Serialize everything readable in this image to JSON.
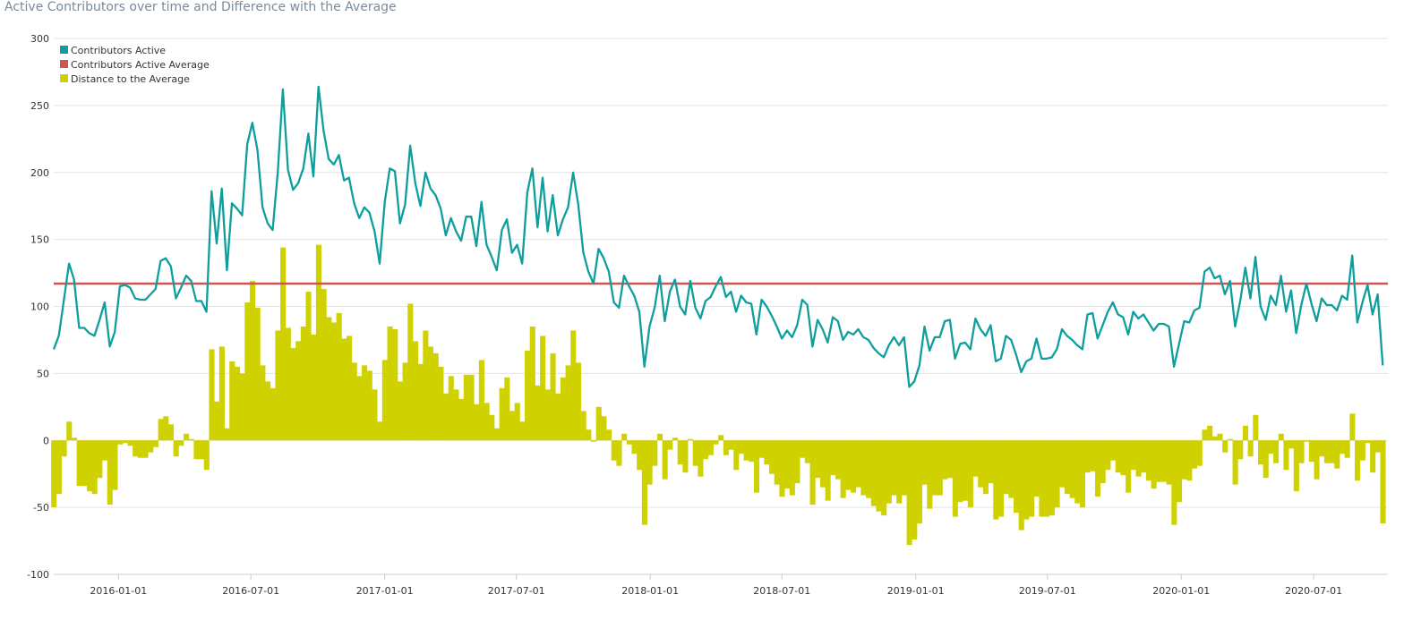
{
  "chart_data": {
    "type": "bar",
    "title": "Active Contributors over time and Difference with the Average",
    "xlabel": "",
    "ylabel": "",
    "ylim": [
      -100,
      300
    ],
    "yticks": [
      300,
      250,
      200,
      150,
      100,
      50,
      0,
      -50,
      -100
    ],
    "x_range": [
      "2015-10-04",
      "2020-10-11"
    ],
    "x_tick_labels": [
      "2016-01-01",
      "2016-07-01",
      "2017-01-01",
      "2017-07-01",
      "2018-01-01",
      "2018-07-01",
      "2019-01-01",
      "2019-07-01",
      "2020-01-01",
      "2020-07-01"
    ],
    "grid": "horizontal",
    "legend_position": "top-left",
    "colors": {
      "active": "#0f9e9e",
      "average": "#cf5555",
      "distance": "#cfd200"
    },
    "series": [
      {
        "name": "Contributors Active",
        "type": "line",
        "start_date": "2015-10-04",
        "interval_days": 7,
        "values": [
          68,
          78,
          105,
          132,
          120,
          84,
          84,
          80,
          78,
          90,
          103,
          70,
          81,
          115,
          116,
          114,
          106,
          105,
          105,
          109,
          113,
          134,
          136,
          130,
          106,
          114,
          123,
          119,
          104,
          104,
          96,
          186,
          147,
          188,
          127,
          177,
          173,
          168,
          221,
          237,
          217,
          174,
          162,
          157,
          200,
          262,
          202,
          187,
          192,
          203,
          229,
          197,
          264,
          231,
          210,
          206,
          213,
          194,
          196,
          177,
          166,
          174,
          170,
          156,
          132,
          178,
          203,
          201,
          162,
          176,
          220,
          192,
          175,
          200,
          188,
          183,
          173,
          153,
          166,
          156,
          149,
          167,
          167,
          145,
          178,
          146,
          137,
          127,
          157,
          165,
          140,
          146,
          132,
          185,
          203,
          159,
          196,
          156,
          183,
          153,
          165,
          174,
          200,
          176,
          140,
          126,
          117,
          143,
          136,
          126,
          103,
          99,
          123,
          115,
          108,
          96,
          55,
          85,
          99,
          123,
          89,
          111,
          120,
          100,
          94,
          119,
          99,
          91,
          104,
          107,
          115,
          122,
          107,
          111,
          96,
          108,
          103,
          102,
          79,
          105,
          100,
          93,
          85,
          76,
          82,
          77,
          86,
          105,
          101,
          70,
          90,
          83,
          73,
          92,
          89,
          75,
          81,
          79,
          83,
          77,
          75,
          69,
          65,
          62,
          71,
          77,
          71,
          77,
          40,
          44,
          56,
          85,
          67,
          77,
          77,
          89,
          90,
          61,
          72,
          73,
          68,
          91,
          83,
          78,
          86,
          59,
          61,
          78,
          75,
          64,
          51,
          59,
          61,
          76,
          61,
          61,
          62,
          68,
          83,
          78,
          75,
          71,
          68,
          94,
          95,
          76,
          86,
          96,
          103,
          94,
          92,
          79,
          96,
          91,
          94,
          88,
          82,
          87,
          87,
          85,
          55,
          72,
          89,
          88,
          97,
          99,
          126,
          129,
          121,
          123,
          109,
          119,
          85,
          104,
          129,
          106,
          137,
          100,
          90,
          108,
          101,
          123,
          96,
          112,
          80,
          101,
          117,
          102,
          89,
          106,
          101,
          101,
          97,
          108,
          105,
          138,
          88,
          103,
          116,
          94,
          109,
          56
        ]
      },
      {
        "name": "Contributors Active Average",
        "type": "line",
        "value": 117
      },
      {
        "name": "Distance to the Average",
        "type": "bar",
        "start_date": "2015-10-04",
        "interval_days": 7,
        "values": [
          -50,
          -40,
          -12,
          14,
          2,
          -34,
          -34,
          -38,
          -40,
          -28,
          -15,
          -48,
          -37,
          -3,
          -2,
          -4,
          -12,
          -13,
          -13,
          -9,
          -5,
          16,
          18,
          12,
          -12,
          -4,
          5,
          1,
          -14,
          -14,
          -22,
          68,
          29,
          70,
          9,
          59,
          55,
          50,
          103,
          119,
          99,
          56,
          44,
          39,
          82,
          144,
          84,
          69,
          74,
          85,
          111,
          79,
          146,
          113,
          92,
          88,
          95,
          76,
          78,
          58,
          48,
          56,
          52,
          38,
          14,
          60,
          85,
          83,
          44,
          58,
          102,
          74,
          57,
          82,
          70,
          65,
          55,
          35,
          48,
          38,
          31,
          49,
          49,
          27,
          60,
          28,
          19,
          9,
          39,
          47,
          22,
          28,
          14,
          67,
          85,
          41,
          78,
          38,
          65,
          35,
          47,
          56,
          82,
          58,
          22,
          8,
          -1,
          25,
          18,
          8,
          -15,
          -19,
          5,
          -3,
          -10,
          -22,
          -63,
          -33,
          -19,
          5,
          -29,
          -7,
          2,
          -18,
          -24,
          1,
          -19,
          -27,
          -14,
          -11,
          -3,
          4,
          -11,
          -7,
          -22,
          -10,
          -15,
          -16,
          -39,
          -13,
          -18,
          -25,
          -33,
          -42,
          -36,
          -41,
          -32,
          -13,
          -17,
          -48,
          -28,
          -35,
          -45,
          -26,
          -29,
          -43,
          -37,
          -39,
          -35,
          -41,
          -43,
          -49,
          -53,
          -56,
          -47,
          -41,
          -47,
          -41,
          -78,
          -74,
          -62,
          -33,
          -51,
          -41,
          -41,
          -29,
          -28,
          -57,
          -46,
          -45,
          -50,
          -27,
          -35,
          -40,
          -32,
          -59,
          -57,
          -40,
          -43,
          -54,
          -67,
          -59,
          -57,
          -42,
          -57,
          -57,
          -56,
          -50,
          -35,
          -40,
          -43,
          -47,
          -50,
          -24,
          -23,
          -42,
          -32,
          -22,
          -15,
          -24,
          -26,
          -39,
          -22,
          -27,
          -24,
          -30,
          -36,
          -31,
          -31,
          -33,
          -63,
          -46,
          -29,
          -30,
          -21,
          -19,
          8,
          11,
          3,
          5,
          -9,
          1,
          -33,
          -14,
          11,
          -12,
          19,
          -18,
          -28,
          -10,
          -17,
          5,
          -22,
          -6,
          -38,
          -17,
          -1,
          -16,
          -29,
          -12,
          -17,
          -17,
          -21,
          -10,
          -13,
          20,
          -30,
          -15,
          -2,
          -24,
          -9,
          -62
        ]
      }
    ]
  }
}
